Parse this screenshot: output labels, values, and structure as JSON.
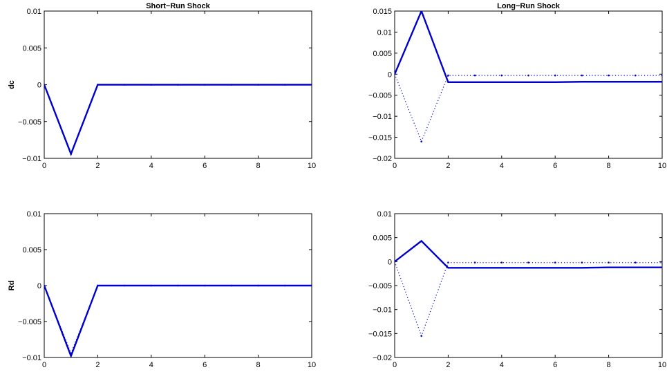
{
  "chart_data": [
    {
      "type": "line",
      "title": "Short−Run Shock",
      "ylabel": "dc",
      "xlabel": "",
      "xlim": [
        0,
        10
      ],
      "ylim": [
        -0.01,
        0.01
      ],
      "xticks": [
        0,
        2,
        4,
        6,
        8,
        10
      ],
      "yticks": [
        -0.01,
        -0.005,
        0,
        0.005,
        0.01
      ],
      "ytick_labels": [
        "−0.01",
        "−0.005",
        "0",
        "0.005",
        "0.01"
      ],
      "series": [
        {
          "style": "solid",
          "color": "#0000cc",
          "x": [
            0,
            1,
            2,
            3,
            4,
            5,
            6,
            7,
            8,
            9,
            10
          ],
          "y": [
            0,
            -0.0094,
            0,
            0,
            0,
            0,
            0,
            0,
            0,
            0,
            0
          ]
        },
        {
          "style": "dotted",
          "color": "#0000cc",
          "x": [
            0,
            1,
            2,
            3,
            4,
            5,
            6,
            7,
            8,
            9,
            10
          ],
          "y": [
            0,
            -0.0094,
            0,
            0,
            0,
            0,
            0,
            0,
            0,
            0,
            0
          ]
        }
      ]
    },
    {
      "type": "line",
      "title": "Long−Run Shock",
      "ylabel": "",
      "xlabel": "",
      "xlim": [
        0,
        10
      ],
      "ylim": [
        -0.02,
        0.015
      ],
      "xticks": [
        0,
        2,
        4,
        6,
        8,
        10
      ],
      "yticks": [
        -0.02,
        -0.015,
        -0.01,
        -0.005,
        0,
        0.005,
        0.01,
        0.015
      ],
      "ytick_labels": [
        "−0.02",
        "−0.015",
        "−0.01",
        "−0.005",
        "0",
        "0.005",
        "0.01",
        "0.015"
      ],
      "series": [
        {
          "style": "solid",
          "color": "#0000cc",
          "x": [
            0,
            1,
            2,
            3,
            4,
            5,
            6,
            7,
            8,
            9,
            10
          ],
          "y": [
            0,
            0.015,
            -0.0019,
            -0.0019,
            -0.0019,
            -0.0019,
            -0.0019,
            -0.0018,
            -0.0018,
            -0.0018,
            -0.0018
          ]
        },
        {
          "style": "dotted",
          "color": "#0000cc",
          "x": [
            0,
            1,
            2,
            3,
            4,
            5,
            6,
            7,
            8,
            9,
            10
          ],
          "y": [
            0,
            -0.016,
            -0.0003,
            -0.0003,
            -0.0003,
            -0.0003,
            -0.0003,
            -0.0003,
            -0.0003,
            -0.0003,
            -0.0003
          ]
        }
      ]
    },
    {
      "type": "line",
      "title": "",
      "ylabel": "Rd",
      "xlabel": "",
      "xlim": [
        0,
        10
      ],
      "ylim": [
        -0.01,
        0.01
      ],
      "xticks": [
        0,
        2,
        4,
        6,
        8,
        10
      ],
      "yticks": [
        -0.01,
        -0.005,
        0,
        0.005,
        0.01
      ],
      "ytick_labels": [
        "−0.01",
        "−0.005",
        "0",
        "0.005",
        "0.01"
      ],
      "series": [
        {
          "style": "solid",
          "color": "#0000cc",
          "x": [
            0,
            1,
            2,
            3,
            4,
            5,
            6,
            7,
            8,
            9,
            10
          ],
          "y": [
            0,
            -0.0098,
            0,
            0,
            0,
            0,
            0,
            0,
            0,
            0,
            0
          ]
        },
        {
          "style": "dotted",
          "color": "#0000cc",
          "x": [
            0,
            1,
            2,
            3,
            4,
            5,
            6,
            7,
            8,
            9,
            10
          ],
          "y": [
            0,
            -0.0094,
            0,
            0,
            0,
            0,
            0,
            0,
            0,
            0,
            0
          ]
        }
      ]
    },
    {
      "type": "line",
      "title": "",
      "ylabel": "",
      "xlabel": "",
      "xlim": [
        0,
        10
      ],
      "ylim": [
        -0.02,
        0.01
      ],
      "xticks": [
        0,
        2,
        4,
        6,
        8,
        10
      ],
      "yticks": [
        -0.02,
        -0.015,
        -0.01,
        -0.005,
        0,
        0.005,
        0.01
      ],
      "ytick_labels": [
        "−0.02",
        "−0.015",
        "−0.01",
        "−0.005",
        "0",
        "0.005",
        "0.01"
      ],
      "series": [
        {
          "style": "solid",
          "color": "#0000cc",
          "x": [
            0,
            1,
            2,
            3,
            4,
            5,
            6,
            7,
            8,
            9,
            10
          ],
          "y": [
            0,
            0.0043,
            -0.0013,
            -0.0013,
            -0.0013,
            -0.0013,
            -0.0013,
            -0.0013,
            -0.0012,
            -0.0012,
            -0.0012
          ]
        },
        {
          "style": "dotted",
          "color": "#0000cc",
          "x": [
            0,
            1,
            2,
            3,
            4,
            5,
            6,
            7,
            8,
            9,
            10
          ],
          "y": [
            0,
            -0.0155,
            -0.0002,
            -0.0002,
            -0.0002,
            -0.0002,
            -0.0002,
            -0.0002,
            -0.0002,
            -0.0002,
            -0.0002
          ]
        }
      ]
    }
  ]
}
